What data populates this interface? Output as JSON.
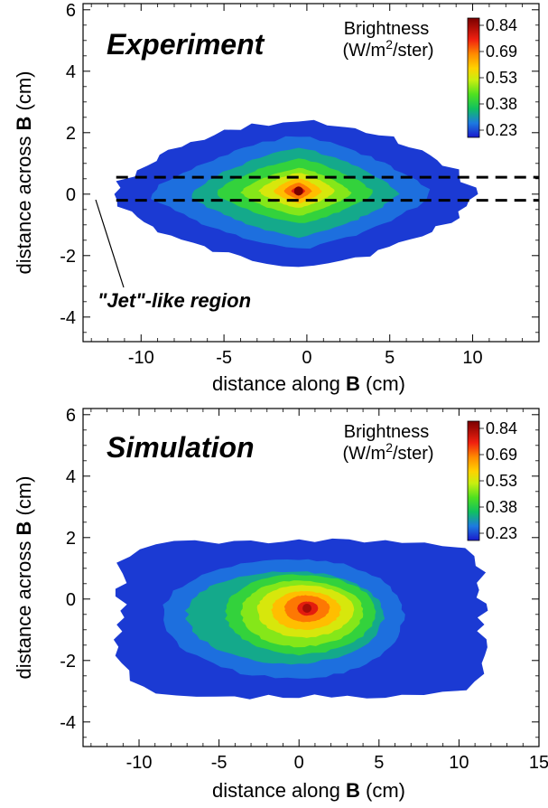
{
  "chart_data": [
    {
      "type": "heatmap",
      "panel": "top",
      "title": "Experiment",
      "xlabel": {
        "prefix": "distance along ",
        "bold": "B",
        "suffix": " (cm)"
      },
      "ylabel": {
        "prefix": "distance across ",
        "bold": "B",
        "suffix": " (cm)"
      },
      "xlim": [
        -13.5,
        14
      ],
      "ylim": [
        -4.8,
        6.2
      ],
      "xticks": [
        -10,
        -5,
        0,
        5,
        10
      ],
      "yticks": [
        -4,
        -2,
        0,
        2,
        4,
        6
      ],
      "colorbar": {
        "title_line1": "Brightness",
        "title_line2_prefix": "(W/m",
        "title_line2_sup": "2",
        "title_line2_suffix": "/ster)",
        "labels": [
          "0.84",
          "0.69",
          "0.53",
          "0.38",
          "0.23"
        ],
        "range": [
          0.15,
          0.9
        ]
      },
      "peak": {
        "x": -0.5,
        "y": 0.1,
        "value": 0.9
      },
      "levels": [
        {
          "value": 0.18,
          "cx": -0.5,
          "cy": 0.0,
          "rx_left": 11.0,
          "rx_right": 10.5,
          "ry_top": 2.4,
          "ry_bottom": 2.3,
          "shape": "diamond-ish"
        },
        {
          "value": 0.23,
          "cx": -0.5,
          "cy": 0.0,
          "rx_left": 9.0,
          "rx_right": 8.0,
          "ry_top": 1.9,
          "ry_bottom": 1.8,
          "shape": "diamond"
        },
        {
          "value": 0.3,
          "cx": -0.5,
          "cy": 0.0,
          "rx_left": 6.5,
          "rx_right": 6.0,
          "ry_top": 1.5,
          "ry_bottom": 1.4,
          "shape": "diamond"
        },
        {
          "value": 0.38,
          "cx": -0.5,
          "cy": 0.05,
          "rx_left": 5.0,
          "rx_right": 4.5,
          "ry_top": 1.1,
          "ry_bottom": 1.0,
          "shape": "diamond"
        },
        {
          "value": 0.46,
          "cx": -0.5,
          "cy": 0.05,
          "rx_left": 3.5,
          "rx_right": 3.2,
          "ry_top": 0.8,
          "ry_bottom": 0.75,
          "shape": "diamond"
        },
        {
          "value": 0.53,
          "cx": -0.5,
          "cy": 0.1,
          "rx_left": 2.4,
          "rx_right": 2.2,
          "ry_top": 0.6,
          "ry_bottom": 0.55,
          "shape": "diamond"
        },
        {
          "value": 0.61,
          "cx": -0.5,
          "cy": 0.1,
          "rx_left": 1.5,
          "rx_right": 1.4,
          "ry_top": 0.42,
          "ry_bottom": 0.4,
          "shape": "diamond"
        },
        {
          "value": 0.69,
          "cx": -0.5,
          "cy": 0.1,
          "rx_left": 0.9,
          "rx_right": 0.8,
          "ry_top": 0.28,
          "ry_bottom": 0.26,
          "shape": "diamond"
        },
        {
          "value": 0.78,
          "cx": -0.5,
          "cy": 0.1,
          "rx_left": 0.45,
          "rx_right": 0.4,
          "ry_top": 0.15,
          "ry_bottom": 0.14,
          "shape": "diamond"
        }
      ],
      "dashed_lines_y": [
        0.55,
        -0.2
      ],
      "dashed_lines_x_range": [
        -11.5,
        14
      ],
      "annotation": {
        "text": "\"Jet\"-like region",
        "x": -11.9,
        "y": -3.5,
        "arrow_to": [
          -11.5,
          -0.3
        ]
      }
    },
    {
      "type": "heatmap",
      "panel": "bottom",
      "title": "Simulation",
      "xlabel": {
        "prefix": "distance along ",
        "bold": "B",
        "suffix": " (cm)"
      },
      "ylabel": {
        "prefix": "distance across ",
        "bold": "B",
        "suffix": " (cm)"
      },
      "xlim": [
        -13.5,
        15
      ],
      "ylim": [
        -4.8,
        6.2
      ],
      "xticks": [
        -10,
        -5,
        0,
        5,
        10,
        15
      ],
      "yticks": [
        -4,
        -2,
        0,
        2,
        4,
        6
      ],
      "colorbar": {
        "title_line1": "Brightness",
        "title_line2_prefix": "(W/m",
        "title_line2_sup": "2",
        "title_line2_suffix": "/ster)",
        "labels": [
          "0.84",
          "0.69",
          "0.53",
          "0.38",
          "0.23"
        ],
        "range": [
          0.15,
          0.9
        ]
      },
      "peak": {
        "x": 0.5,
        "y": -0.3,
        "value": 0.85
      },
      "levels": [
        {
          "value": 0.18,
          "cx": 0.0,
          "cy": -0.6,
          "rx_left": 11.2,
          "rx_right": 11.5,
          "ry_top": 2.5,
          "ry_bottom": 2.6,
          "shape": "rect"
        },
        {
          "value": 0.23,
          "cx": 0.0,
          "cy": -0.5,
          "rx_left": 8.5,
          "rx_right": 6.5,
          "ry_top": 1.8,
          "ry_bottom": 2.1,
          "shape": "ellipse"
        },
        {
          "value": 0.3,
          "cx": -0.5,
          "cy": -0.5,
          "rx_left": 6.5,
          "rx_right": 5.8,
          "ry_top": 1.4,
          "ry_bottom": 1.6,
          "shape": "ellipse"
        },
        {
          "value": 0.38,
          "cx": 0.0,
          "cy": -0.4,
          "rx_left": 4.6,
          "rx_right": 4.8,
          "ry_top": 1.2,
          "ry_bottom": 1.4,
          "shape": "ellipse"
        },
        {
          "value": 0.46,
          "cx": 0.0,
          "cy": -0.4,
          "rx_left": 3.6,
          "rx_right": 4.0,
          "ry_top": 1.0,
          "ry_bottom": 1.15,
          "shape": "ellipse"
        },
        {
          "value": 0.53,
          "cx": 0.2,
          "cy": -0.35,
          "rx_left": 2.8,
          "rx_right": 3.2,
          "ry_top": 0.8,
          "ry_bottom": 0.9,
          "shape": "ellipse"
        },
        {
          "value": 0.61,
          "cx": 0.3,
          "cy": -0.35,
          "rx_left": 2.0,
          "rx_right": 2.3,
          "ry_top": 0.6,
          "ry_bottom": 0.65,
          "shape": "ellipse"
        },
        {
          "value": 0.69,
          "cx": 0.4,
          "cy": -0.3,
          "rx_left": 1.3,
          "rx_right": 1.5,
          "ry_top": 0.42,
          "ry_bottom": 0.45,
          "shape": "ellipse"
        },
        {
          "value": 0.78,
          "cx": 0.5,
          "cy": -0.3,
          "rx_left": 0.6,
          "rx_right": 0.7,
          "ry_top": 0.22,
          "ry_bottom": 0.24,
          "shape": "ellipse"
        }
      ]
    }
  ]
}
